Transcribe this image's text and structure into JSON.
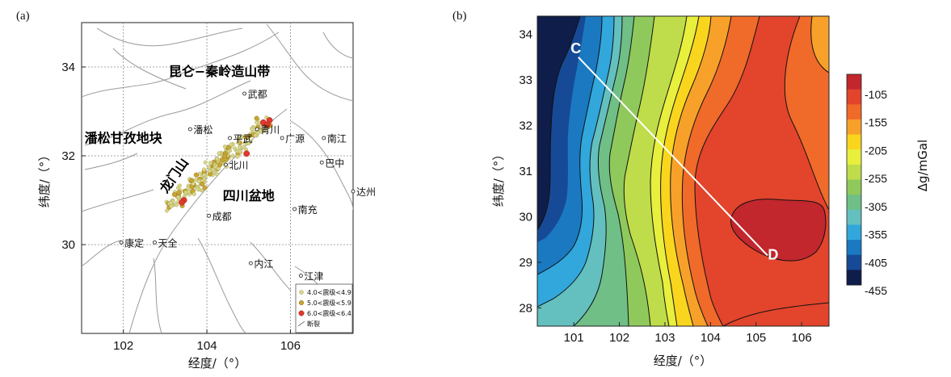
{
  "chart_data": [
    {
      "panel": "(a)",
      "type": "scatter",
      "xlabel": "经度/（°）",
      "ylabel": "纬度/（°）",
      "xlim": [
        101,
        107.5
      ],
      "ylim": [
        28,
        35
      ],
      "xticks": [
        102,
        104,
        106
      ],
      "yticks": [
        30,
        32,
        34
      ],
      "grid": "dashed",
      "regions": [
        {
          "name": "昆仑−秦岭造山带",
          "lon": 104.3,
          "lat": 33.8
        },
        {
          "name": "潘松甘孜地块",
          "lon": 102.0,
          "lat": 32.3
        },
        {
          "name": "龙门山",
          "lon": 103.3,
          "lat": 31.5,
          "rotate": -55
        },
        {
          "name": "四川盆地",
          "lon": 105.0,
          "lat": 31.0
        }
      ],
      "cities": [
        {
          "name": "武都",
          "lon": 104.9,
          "lat": 33.4
        },
        {
          "name": "潘松",
          "lon": 103.6,
          "lat": 32.6
        },
        {
          "name": "平武",
          "lon": 104.55,
          "lat": 32.4
        },
        {
          "name": "青川",
          "lon": 105.2,
          "lat": 32.6
        },
        {
          "name": "广源",
          "lon": 105.8,
          "lat": 32.4
        },
        {
          "name": "南江",
          "lon": 106.8,
          "lat": 32.4
        },
        {
          "name": "北川",
          "lon": 104.45,
          "lat": 31.8
        },
        {
          "name": "巴中",
          "lon": 106.75,
          "lat": 31.85
        },
        {
          "name": "达州",
          "lon": 107.5,
          "lat": 31.2
        },
        {
          "name": "成都",
          "lon": 104.05,
          "lat": 30.65
        },
        {
          "name": "南充",
          "lon": 106.1,
          "lat": 30.8
        },
        {
          "name": "康定",
          "lon": 101.95,
          "lat": 30.05
        },
        {
          "name": "天全",
          "lon": 102.75,
          "lat": 30.05
        },
        {
          "name": "内江",
          "lon": 105.05,
          "lat": 29.58
        },
        {
          "name": "江津",
          "lon": 106.25,
          "lat": 29.3
        }
      ],
      "legend": {
        "position": "bottom-right",
        "entries": [
          {
            "label": "4.0<震级<4.9",
            "color": "#d8d68a"
          },
          {
            "label": "5.0<震级<5.9",
            "color": "#c9a531"
          },
          {
            "label": "6.0<震级<6.4",
            "color": "#e03a2e"
          },
          {
            "label": "断裂",
            "color": "#777777"
          }
        ]
      },
      "large_events": [
        {
          "lon": 103.45,
          "lat": 31.0
        },
        {
          "lon": 103.4,
          "lat": 30.95
        },
        {
          "lon": 104.95,
          "lat": 32.05
        },
        {
          "lon": 105.35,
          "lat": 32.75
        },
        {
          "lon": 105.5,
          "lat": 32.8
        },
        {
          "lon": 105.45,
          "lat": 32.7
        }
      ]
    },
    {
      "panel": "(b)",
      "type": "heatmap",
      "xlabel": "经度/（°）",
      "ylabel": "纬度/（°）",
      "xlim": [
        100.2,
        106.6
      ],
      "ylim": [
        27.6,
        34.4
      ],
      "xticks": [
        101,
        102,
        103,
        104,
        105,
        106
      ],
      "yticks": [
        28,
        29,
        30,
        31,
        32,
        33,
        34
      ],
      "colorbar": {
        "label": "Δg/mGal",
        "ticks": [
          -105,
          -155,
          -205,
          -255,
          -305,
          -355,
          -405,
          -455
        ],
        "colors": [
          "#c1272d",
          "#e2442c",
          "#f06a2a",
          "#f7a12a",
          "#f9d51e",
          "#e8ef3d",
          "#bfdc4a",
          "#8fc95b",
          "#6fbf86",
          "#63c0bf",
          "#31a7dc",
          "#1a79c1",
          "#174a96",
          "#0f1d4b"
        ]
      },
      "profile": {
        "start": {
          "label": "C",
          "lon": 101.1,
          "lat": 33.5
        },
        "end": {
          "label": "D",
          "lon": 105.25,
          "lat": 29.15
        }
      }
    }
  ]
}
